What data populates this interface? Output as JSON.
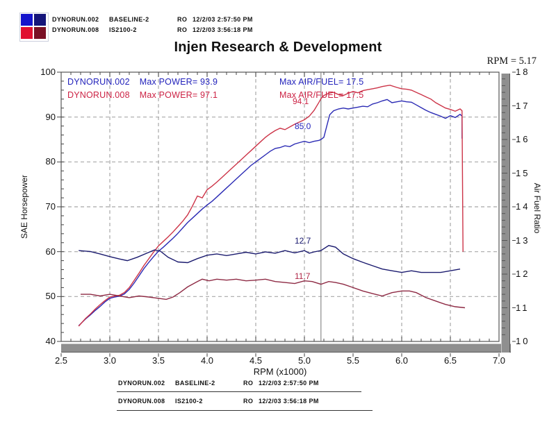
{
  "header": {
    "logo_colors": [
      "#1414cc",
      "#15157a",
      "#e01030",
      "#7a1025"
    ],
    "runs": [
      {
        "file": "DYNORUN.002",
        "name": "BASELINE-2",
        "ro": "RO",
        "datetime": "12/2/03 2:57:50 PM"
      },
      {
        "file": "DYNORUN.008",
        "name": "IS2100-2",
        "ro": "RO",
        "datetime": "12/2/03 3:56:18 PM"
      }
    ]
  },
  "title": "Injen Research & Development",
  "cursor_readout": "RPM = 5.17",
  "colors": {
    "grid": "#a8a8a8",
    "frame": "#555555",
    "cursor": "#8a8a8a",
    "bar": "#8f8f8f",
    "bar_hi": "#c8c8c8",
    "bar_lo": "#5a5a5a",
    "tick": "#444444",
    "legend_blue": "#2222bb",
    "legend_red": "#cc2244"
  },
  "chart_data": {
    "type": "line",
    "title": "Injen Research & Development",
    "xlabel": "RPM (x1000)",
    "ylabel_left": "SAE Horsepower",
    "ylabel_right": "Air Fuel Ratio",
    "xlim": [
      2.5,
      7.0
    ],
    "ylim_left": [
      40,
      100
    ],
    "ylim_right": [
      10,
      18
    ],
    "x_ticks": [
      2.5,
      3.0,
      3.5,
      4.0,
      4.5,
      5.0,
      5.5,
      6.0,
      6.5,
      7.0
    ],
    "y_ticks_left": [
      100,
      90,
      80,
      70,
      60,
      50,
      40
    ],
    "y_ticks_right": [
      18,
      17,
      16,
      15,
      14,
      13,
      12,
      11,
      10
    ],
    "grid": true,
    "legend_position": "top-left-inside",
    "cursor": {
      "rpm": 5.17,
      "readout": "RPM = 5.17"
    },
    "legend": [
      {
        "file": "DYNORUN.002",
        "max_power_label": "Max POWER= 93.9",
        "max_afr_label": "Max AIR/FUEL= 17.5"
      },
      {
        "file": "DYNORUN.008",
        "max_power_label": "Max POWER= 97.1",
        "max_afr_label": "Max AIR/FUEL= 17.5"
      }
    ],
    "cursor_values": {
      "power_008": "94.1",
      "power_002": "85.0",
      "afr_002": "12.7",
      "afr_008": "11.7"
    },
    "series": [
      {
        "name": "DYNORUN.002 SAE Horsepower",
        "axis": "left",
        "color": "#2a2ab4",
        "points": [
          [
            2.68,
            43.5
          ],
          [
            2.75,
            45.0
          ],
          [
            2.8,
            45.9
          ],
          [
            2.85,
            46.9
          ],
          [
            2.9,
            47.8
          ],
          [
            2.95,
            48.8
          ],
          [
            3.0,
            49.6
          ],
          [
            3.05,
            49.9
          ],
          [
            3.1,
            50.1
          ],
          [
            3.15,
            50.6
          ],
          [
            3.2,
            51.6
          ],
          [
            3.25,
            53.0
          ],
          [
            3.3,
            54.6
          ],
          [
            3.35,
            56.2
          ],
          [
            3.4,
            57.6
          ],
          [
            3.45,
            58.9
          ],
          [
            3.5,
            60.1
          ],
          [
            3.55,
            61.0
          ],
          [
            3.6,
            62.0
          ],
          [
            3.65,
            63.0
          ],
          [
            3.7,
            64.1
          ],
          [
            3.75,
            65.3
          ],
          [
            3.8,
            66.5
          ],
          [
            3.85,
            67.5
          ],
          [
            3.9,
            68.5
          ],
          [
            3.95,
            69.5
          ],
          [
            4.0,
            70.4
          ],
          [
            4.05,
            71.2
          ],
          [
            4.1,
            72.2
          ],
          [
            4.15,
            73.2
          ],
          [
            4.2,
            74.2
          ],
          [
            4.25,
            75.2
          ],
          [
            4.3,
            76.2
          ],
          [
            4.35,
            77.2
          ],
          [
            4.4,
            78.2
          ],
          [
            4.45,
            79.2
          ],
          [
            4.5,
            80.0
          ],
          [
            4.55,
            80.8
          ],
          [
            4.6,
            81.6
          ],
          [
            4.65,
            82.4
          ],
          [
            4.7,
            83.0
          ],
          [
            4.75,
            83.2
          ],
          [
            4.8,
            83.6
          ],
          [
            4.85,
            83.4
          ],
          [
            4.9,
            84.0
          ],
          [
            4.95,
            84.3
          ],
          [
            5.0,
            84.6
          ],
          [
            5.05,
            84.3
          ],
          [
            5.1,
            84.6
          ],
          [
            5.15,
            84.8
          ],
          [
            5.17,
            85.0
          ],
          [
            5.2,
            85.5
          ],
          [
            5.23,
            88.0
          ],
          [
            5.26,
            90.5
          ],
          [
            5.3,
            91.4
          ],
          [
            5.35,
            91.8
          ],
          [
            5.4,
            92.0
          ],
          [
            5.45,
            91.8
          ],
          [
            5.5,
            92.0
          ],
          [
            5.55,
            92.2
          ],
          [
            5.6,
            92.4
          ],
          [
            5.65,
            92.3
          ],
          [
            5.7,
            92.9
          ],
          [
            5.75,
            93.2
          ],
          [
            5.8,
            93.6
          ],
          [
            5.85,
            93.9
          ],
          [
            5.9,
            93.2
          ],
          [
            5.95,
            93.4
          ],
          [
            6.0,
            93.6
          ],
          [
            6.05,
            93.4
          ],
          [
            6.1,
            93.3
          ],
          [
            6.15,
            92.7
          ],
          [
            6.2,
            92.1
          ],
          [
            6.25,
            91.5
          ],
          [
            6.3,
            91.0
          ],
          [
            6.35,
            90.6
          ],
          [
            6.4,
            90.2
          ],
          [
            6.45,
            89.7
          ],
          [
            6.5,
            90.3
          ],
          [
            6.55,
            89.9
          ],
          [
            6.6,
            90.6
          ],
          [
            6.62,
            90.2
          ],
          [
            6.62,
            85.2
          ]
        ]
      },
      {
        "name": "DYNORUN.008 SAE Horsepower",
        "axis": "left",
        "color": "#cc3347",
        "points": [
          [
            2.68,
            43.4
          ],
          [
            2.75,
            45.1
          ],
          [
            2.8,
            46.1
          ],
          [
            2.85,
            47.2
          ],
          [
            2.9,
            48.2
          ],
          [
            2.95,
            49.1
          ],
          [
            3.0,
            49.9
          ],
          [
            3.05,
            50.1
          ],
          [
            3.1,
            50.3
          ],
          [
            3.15,
            50.9
          ],
          [
            3.2,
            52.0
          ],
          [
            3.25,
            53.6
          ],
          [
            3.3,
            55.2
          ],
          [
            3.35,
            56.9
          ],
          [
            3.4,
            58.4
          ],
          [
            3.45,
            59.9
          ],
          [
            3.5,
            61.3
          ],
          [
            3.55,
            62.3
          ],
          [
            3.6,
            63.3
          ],
          [
            3.65,
            64.4
          ],
          [
            3.7,
            65.6
          ],
          [
            3.75,
            66.8
          ],
          [
            3.8,
            68.2
          ],
          [
            3.85,
            70.2
          ],
          [
            3.9,
            72.4
          ],
          [
            3.95,
            72.0
          ],
          [
            4.0,
            73.8
          ],
          [
            4.05,
            74.6
          ],
          [
            4.1,
            75.5
          ],
          [
            4.15,
            76.5
          ],
          [
            4.2,
            77.5
          ],
          [
            4.25,
            78.5
          ],
          [
            4.3,
            79.5
          ],
          [
            4.35,
            80.5
          ],
          [
            4.4,
            81.5
          ],
          [
            4.45,
            82.5
          ],
          [
            4.5,
            83.5
          ],
          [
            4.55,
            84.5
          ],
          [
            4.6,
            85.5
          ],
          [
            4.65,
            86.3
          ],
          [
            4.7,
            87.0
          ],
          [
            4.75,
            87.5
          ],
          [
            4.8,
            87.2
          ],
          [
            4.85,
            87.8
          ],
          [
            4.9,
            88.4
          ],
          [
            4.95,
            88.9
          ],
          [
            5.0,
            89.4
          ],
          [
            5.05,
            90.2
          ],
          [
            5.1,
            91.5
          ],
          [
            5.15,
            93.3
          ],
          [
            5.17,
            94.1
          ],
          [
            5.2,
            94.8
          ],
          [
            5.25,
            95.3
          ],
          [
            5.3,
            95.5
          ],
          [
            5.35,
            95.0
          ],
          [
            5.4,
            94.8
          ],
          [
            5.45,
            95.3
          ],
          [
            5.5,
            95.7
          ],
          [
            5.55,
            95.4
          ],
          [
            5.6,
            95.9
          ],
          [
            5.65,
            96.1
          ],
          [
            5.7,
            96.3
          ],
          [
            5.75,
            96.5
          ],
          [
            5.8,
            96.8
          ],
          [
            5.85,
            97.0
          ],
          [
            5.88,
            97.1
          ],
          [
            5.95,
            96.6
          ],
          [
            6.0,
            96.3
          ],
          [
            6.05,
            96.2
          ],
          [
            6.1,
            96.0
          ],
          [
            6.15,
            95.5
          ],
          [
            6.2,
            95.0
          ],
          [
            6.25,
            94.5
          ],
          [
            6.3,
            94.0
          ],
          [
            6.35,
            93.2
          ],
          [
            6.4,
            92.6
          ],
          [
            6.45,
            92.0
          ],
          [
            6.5,
            91.7
          ],
          [
            6.55,
            91.3
          ],
          [
            6.6,
            91.8
          ],
          [
            6.62,
            91.4
          ],
          [
            6.63,
            60.0
          ]
        ]
      },
      {
        "name": "DYNORUN.002 Air Fuel Ratio",
        "axis": "right",
        "color": "#1a1a6e",
        "points": [
          [
            2.68,
            12.7
          ],
          [
            2.8,
            12.67
          ],
          [
            2.9,
            12.6
          ],
          [
            3.0,
            12.52
          ],
          [
            3.1,
            12.45
          ],
          [
            3.18,
            12.4
          ],
          [
            3.28,
            12.5
          ],
          [
            3.38,
            12.62
          ],
          [
            3.46,
            12.72
          ],
          [
            3.52,
            12.68
          ],
          [
            3.6,
            12.5
          ],
          [
            3.7,
            12.36
          ],
          [
            3.8,
            12.34
          ],
          [
            3.9,
            12.46
          ],
          [
            4.0,
            12.56
          ],
          [
            4.1,
            12.6
          ],
          [
            4.2,
            12.55
          ],
          [
            4.3,
            12.6
          ],
          [
            4.4,
            12.65
          ],
          [
            4.5,
            12.6
          ],
          [
            4.6,
            12.66
          ],
          [
            4.7,
            12.62
          ],
          [
            4.8,
            12.7
          ],
          [
            4.9,
            12.63
          ],
          [
            5.0,
            12.7
          ],
          [
            5.05,
            12.62
          ],
          [
            5.1,
            12.66
          ],
          [
            5.17,
            12.7
          ],
          [
            5.25,
            12.85
          ],
          [
            5.32,
            12.8
          ],
          [
            5.4,
            12.6
          ],
          [
            5.5,
            12.46
          ],
          [
            5.6,
            12.35
          ],
          [
            5.7,
            12.25
          ],
          [
            5.8,
            12.15
          ],
          [
            5.9,
            12.1
          ],
          [
            6.0,
            12.05
          ],
          [
            6.1,
            12.1
          ],
          [
            6.2,
            12.05
          ],
          [
            6.3,
            12.05
          ],
          [
            6.4,
            12.05
          ],
          [
            6.5,
            12.1
          ],
          [
            6.6,
            12.15
          ]
        ]
      },
      {
        "name": "DYNORUN.008 Air Fuel Ratio",
        "axis": "right",
        "color": "#8e2a44",
        "points": [
          [
            2.7,
            11.4
          ],
          [
            2.8,
            11.4
          ],
          [
            2.9,
            11.35
          ],
          [
            3.0,
            11.4
          ],
          [
            3.1,
            11.35
          ],
          [
            3.2,
            11.3
          ],
          [
            3.3,
            11.35
          ],
          [
            3.4,
            11.32
          ],
          [
            3.5,
            11.28
          ],
          [
            3.58,
            11.25
          ],
          [
            3.65,
            11.32
          ],
          [
            3.72,
            11.45
          ],
          [
            3.8,
            11.62
          ],
          [
            3.9,
            11.78
          ],
          [
            3.95,
            11.85
          ],
          [
            4.02,
            11.8
          ],
          [
            4.1,
            11.85
          ],
          [
            4.2,
            11.82
          ],
          [
            4.3,
            11.85
          ],
          [
            4.4,
            11.8
          ],
          [
            4.5,
            11.82
          ],
          [
            4.6,
            11.85
          ],
          [
            4.7,
            11.78
          ],
          [
            4.8,
            11.75
          ],
          [
            4.9,
            11.72
          ],
          [
            5.0,
            11.8
          ],
          [
            5.08,
            11.78
          ],
          [
            5.17,
            11.7
          ],
          [
            5.25,
            11.78
          ],
          [
            5.32,
            11.75
          ],
          [
            5.4,
            11.7
          ],
          [
            5.5,
            11.6
          ],
          [
            5.6,
            11.5
          ],
          [
            5.7,
            11.42
          ],
          [
            5.8,
            11.35
          ],
          [
            5.9,
            11.45
          ],
          [
            6.0,
            11.5
          ],
          [
            6.08,
            11.5
          ],
          [
            6.15,
            11.45
          ],
          [
            6.25,
            11.3
          ],
          [
            6.35,
            11.2
          ],
          [
            6.45,
            11.1
          ],
          [
            6.55,
            11.03
          ],
          [
            6.65,
            11.0
          ]
        ]
      }
    ]
  },
  "footer": {
    "runs": [
      {
        "file": "DYNORUN.002",
        "name": "BASELINE-2",
        "ro": "RO",
        "datetime": "12/2/03 2:57:50 PM"
      },
      {
        "file": "DYNORUN.008",
        "name": "IS2100-2",
        "ro": "RO",
        "datetime": "12/2/03 3:56:18 PM"
      }
    ]
  }
}
